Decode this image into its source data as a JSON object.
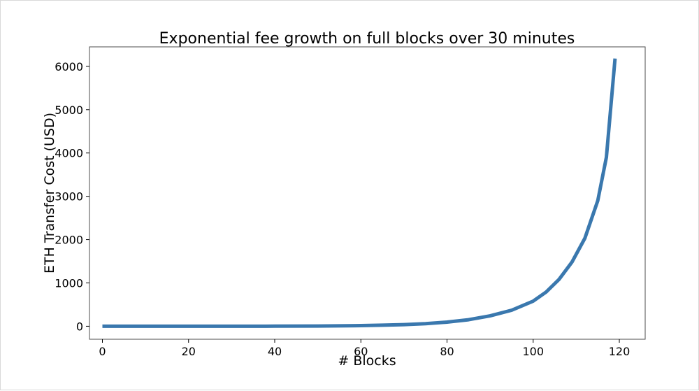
{
  "chart_data": {
    "type": "line",
    "title": "Exponential fee growth on full blocks over 30 minutes",
    "xlabel": "# Blocks",
    "ylabel": "ETH Transfer Cost (USD)",
    "xlim": [
      -3,
      126
    ],
    "ylim": [
      -300,
      6450
    ],
    "xticks": [
      0,
      20,
      40,
      60,
      80,
      100,
      120
    ],
    "yticks": [
      0,
      1000,
      2000,
      3000,
      4000,
      5000,
      6000
    ],
    "grid": false,
    "legend": "none",
    "series": [
      {
        "color": "#3a78ae",
        "x": [
          0,
          10,
          20,
          30,
          40,
          50,
          60,
          65,
          70,
          75,
          80,
          85,
          90,
          95,
          100,
          103,
          106,
          109,
          112,
          115,
          117,
          119
        ],
        "y": [
          0,
          0,
          0,
          1,
          2,
          6,
          15,
          25,
          38,
          60,
          95,
          150,
          240,
          370,
          580,
          790,
          1080,
          1480,
          2030,
          2900,
          3900,
          6180
        ]
      }
    ]
  }
}
